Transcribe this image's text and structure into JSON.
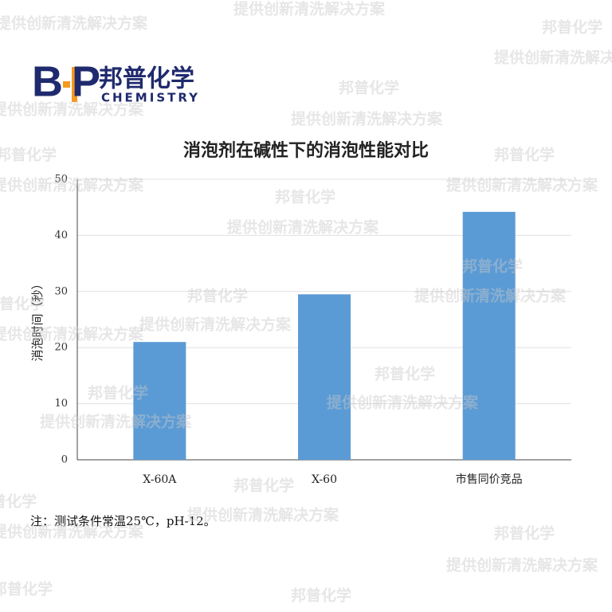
{
  "logo": {
    "letter_left": "B",
    "letter_right": "P",
    "name": "邦普化学",
    "subtitle": "CHEMISTRY"
  },
  "watermark": {
    "brand": "邦普化学",
    "slogan": "提供创新清洗解决方案"
  },
  "note": "注：测试条件常温25℃，pH-12。",
  "chart_data": {
    "type": "bar",
    "title": "消泡剂在碱性下的消泡性能对比",
    "y_label": "消泡时间（秒）",
    "categories": [
      "X-60A",
      "X-60",
      "市售同价竞品"
    ],
    "values": [
      21,
      29.5,
      44.2
    ],
    "color": "#5b9bd5",
    "ylim": [
      0,
      50
    ],
    "yticks": [
      0,
      10,
      20,
      30,
      40,
      50
    ],
    "grid": true
  }
}
